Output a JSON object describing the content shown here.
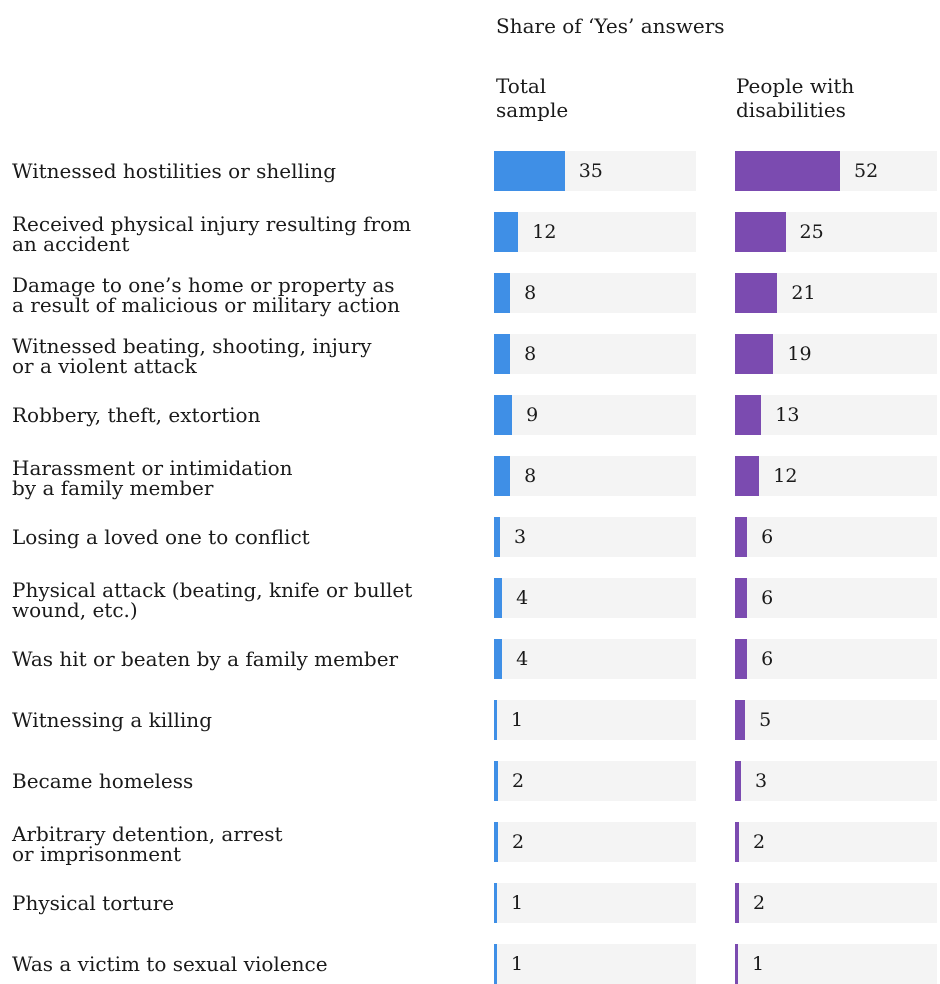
{
  "chart_data": {
    "type": "bar",
    "title": "Share of ‘Yes’ answers",
    "colors": {
      "total": "#3f8fe6",
      "disabilities": "#7b4bb0",
      "track": "#f4f4f4"
    },
    "xlim": [
      0,
      100
    ],
    "series": [
      {
        "name": "Total sample",
        "values": [
          35,
          12,
          8,
          8,
          9,
          8,
          3,
          4,
          4,
          1,
          2,
          2,
          1,
          1
        ]
      },
      {
        "name": "People with disabilities",
        "values": [
          52,
          25,
          21,
          19,
          13,
          12,
          6,
          6,
          6,
          5,
          3,
          2,
          2,
          1
        ]
      }
    ],
    "categories": [
      [
        "Witnessed hostilities or shelling"
      ],
      [
        "Received physical injury resulting from",
        "an accident"
      ],
      [
        "Damage to one’s home or property as",
        "a result of malicious or military action"
      ],
      [
        "Witnessed beating, shooting, injury",
        "or a violent attack"
      ],
      [
        "Robbery, theft, extortion"
      ],
      [
        "Harassment or intimidation",
        "by a family member"
      ],
      [
        "Losing a loved one to conflict"
      ],
      [
        "Physical attack (beating, knife or bullet",
        "wound, etc.)"
      ],
      [
        "Was hit or beaten by a family member"
      ],
      [
        "Witnessing a killing"
      ],
      [
        "Became homeless"
      ],
      [
        "Arbitrary detention, arrest",
        "or imprisonment"
      ],
      [
        "Physical torture"
      ],
      [
        "Was a victim to sexual violence"
      ]
    ],
    "column_headers": [
      [
        "Total",
        "sample"
      ],
      [
        "People with",
        "disabilities"
      ]
    ]
  }
}
